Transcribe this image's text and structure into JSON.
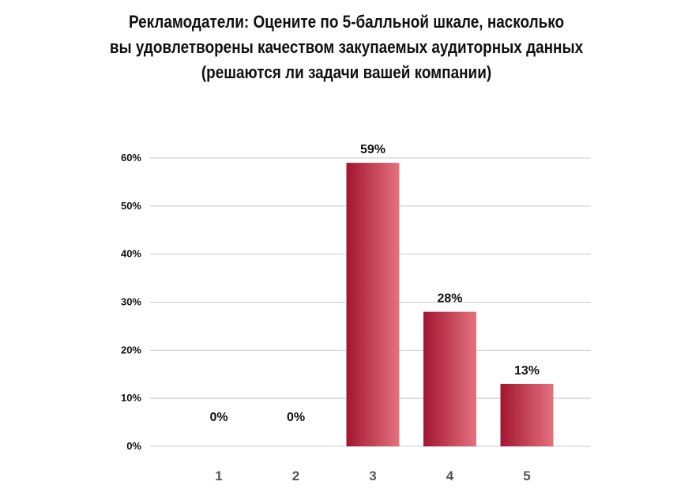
{
  "title_lines": [
    "Рекламодатели: Оцените по 5-балльной шкале, насколько",
    "вы удовлетворены качеством закупаемых аудиторных данных",
    "(решаются ли задачи вашей компании)"
  ],
  "chart_data": {
    "type": "bar",
    "title": "Рекламодатели: Оцените по 5-балльной шкале, насколько вы удовлетворены качеством закупаемых аудиторных данных (решаются ли задачи вашей компании)",
    "categories": [
      "1",
      "2",
      "3",
      "4",
      "5"
    ],
    "values": [
      0,
      0,
      59,
      28,
      13
    ],
    "data_labels": [
      "0%",
      "0%",
      "59%",
      "28%",
      "13%"
    ],
    "ylim": [
      0,
      60
    ],
    "yticks": [
      0,
      10,
      20,
      30,
      40,
      50,
      60
    ],
    "ytick_labels": [
      "0%",
      "10%",
      "20%",
      "30%",
      "40%",
      "50%",
      "60%"
    ],
    "xlabel": "",
    "ylabel": "",
    "grid": true,
    "legend": "none",
    "bar_color_dark": "#a3152f",
    "bar_color_light": "#e4727f",
    "grid_color": "#c8c8c8"
  }
}
